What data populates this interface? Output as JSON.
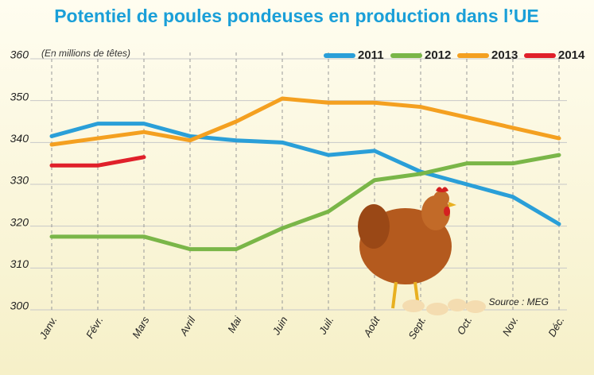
{
  "chart_data": {
    "type": "line",
    "title": "Potentiel de poules pondeuses en production dans l’UE",
    "subtitle": "(En millions de têtes)",
    "source": "Source : MEG",
    "categories": [
      "Janv.",
      "Févr.",
      "Mars",
      "Avril",
      "Mai",
      "Juin",
      "Juil.",
      "Août",
      "Sept.",
      "Oct.",
      "Nov.",
      "Déc."
    ],
    "series": [
      {
        "name": "2011",
        "color": "#2a9fd8",
        "values": [
          341.5,
          344.5,
          344.5,
          341.5,
          340.5,
          340,
          337,
          338,
          333,
          330,
          327,
          320.5
        ]
      },
      {
        "name": "2012",
        "color": "#7ab648",
        "values": [
          317.5,
          317.5,
          317.5,
          314.5,
          314.5,
          319.5,
          323.5,
          331,
          332.5,
          335,
          335,
          337
        ]
      },
      {
        "name": "2013",
        "color": "#f4a020",
        "values": [
          339.5,
          341,
          342.5,
          340.5,
          345,
          350.5,
          349.5,
          349.5,
          348.5,
          346,
          343.5,
          341
        ]
      },
      {
        "name": "2014",
        "color": "#e0202a",
        "values": [
          334.5,
          334.5,
          336.5,
          null,
          null,
          null,
          null,
          null,
          null,
          null,
          null,
          null
        ]
      }
    ],
    "ylim": [
      300,
      360
    ],
    "yticks": [
      300,
      310,
      320,
      330,
      340,
      350,
      360
    ],
    "grid": true,
    "legend": "top-right"
  }
}
